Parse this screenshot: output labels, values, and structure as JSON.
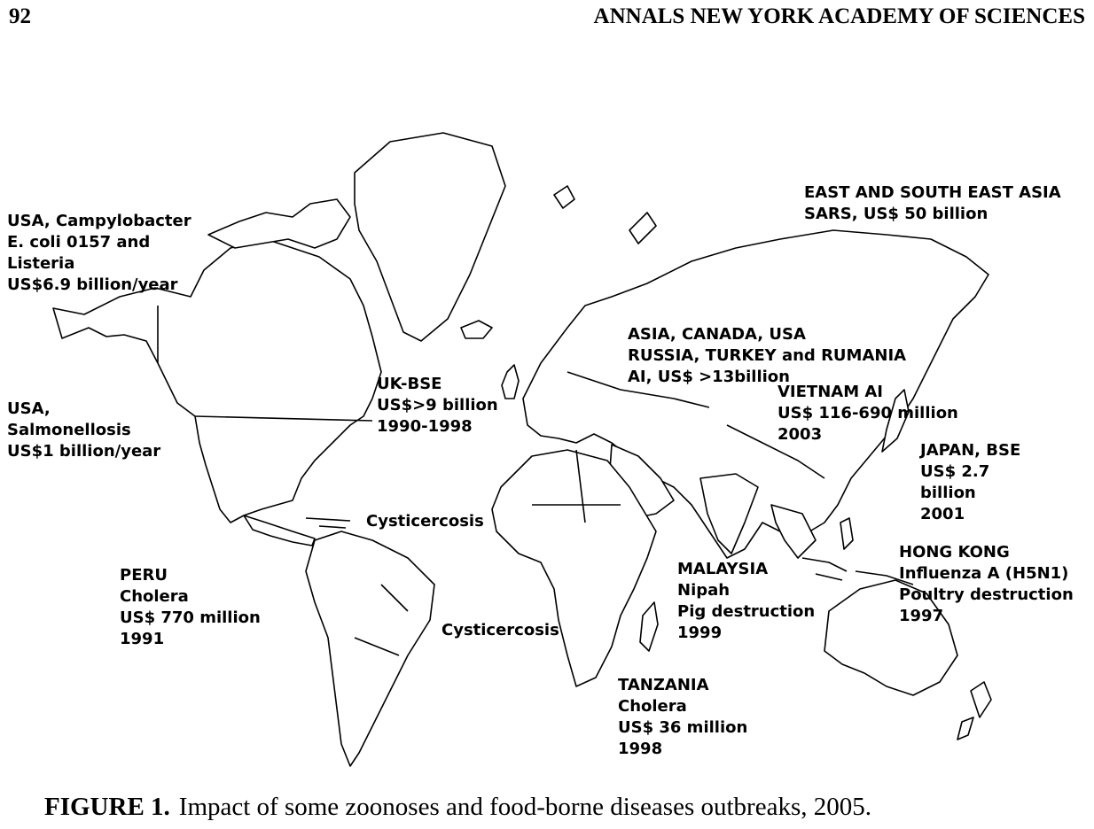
{
  "header": {
    "page_number": "92",
    "running_head": "ANNALS NEW YORK ACADEMY OF SCIENCES"
  },
  "map_labels": {
    "usa_campylobacter": [
      "USA, Campylobacter",
      "E. coli 0157 and",
      "Listeria",
      "US$6.9 billion/year"
    ],
    "usa_salmonellosis": [
      "USA,",
      "Salmonellosis",
      "US$1 billion/year"
    ],
    "uk_bse": [
      "UK-BSE",
      "US$>9 billion",
      "1990-1998"
    ],
    "cysticercosis_americas": [
      "Cysticercosis"
    ],
    "peru_cholera": [
      "PERU",
      "Cholera",
      "US$ 770 million",
      "1991"
    ],
    "cysticercosis_africa": [
      "Cysticercosis"
    ],
    "tanzania_cholera": [
      "TANZANIA",
      "Cholera",
      "US$ 36 million",
      "1998"
    ],
    "malaysia_nipah": [
      "MALAYSIA",
      "Nipah",
      "Pig destruction",
      "1999"
    ],
    "asia_ai": [
      "ASIA, CANADA, USA",
      "RUSSIA, TURKEY and RUMANIA",
      "AI, US$ >13billion"
    ],
    "vietnam_ai": [
      "VIETNAM AI",
      "US$ 116-690 million",
      "2003"
    ],
    "japan_bse": [
      "JAPAN, BSE",
      "US$ 2.7",
      "billion",
      "2001"
    ],
    "hong_kong": [
      "HONG KONG",
      "Influenza A (H5N1)",
      "Poultry destruction",
      "1997"
    ],
    "east_asia_sars": [
      "EAST AND SOUTH EAST ASIA",
      "SARS, US$ 50 billion"
    ]
  },
  "caption": {
    "label": "FIGURE  1.",
    "text": "Impact of some zoonoses and food-borne diseases outbreaks, 2005."
  }
}
